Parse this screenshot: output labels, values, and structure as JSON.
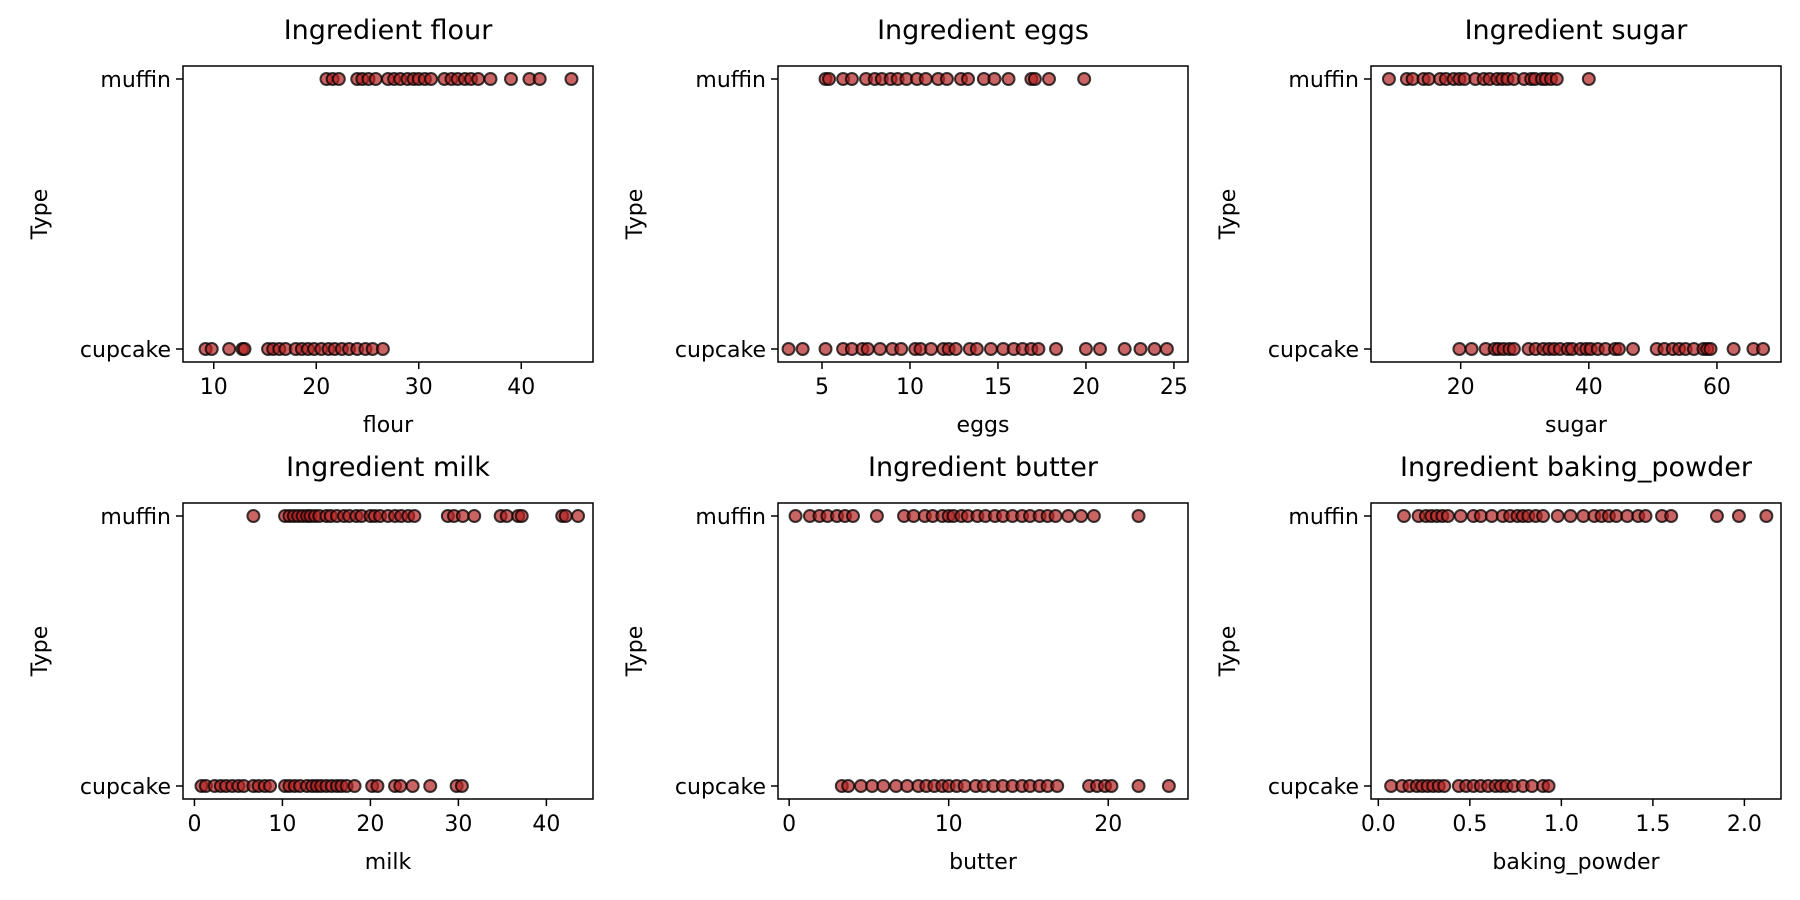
{
  "chart_data": [
    {
      "type": "scatter",
      "title": "Ingredient flour",
      "xlabel": "flour",
      "ylabel": "Type",
      "categories": [
        "cupcake",
        "muffin"
      ],
      "xlim": [
        7,
        47
      ],
      "xticks": [
        10,
        20,
        30,
        40
      ],
      "series": [
        {
          "category": "muffin",
          "x": [
            21.0,
            21.6,
            22.2,
            24.0,
            24.5,
            25.1,
            25.8,
            27.0,
            27.6,
            28.2,
            28.9,
            29.5,
            30.0,
            30.6,
            31.2,
            32.5,
            33.2,
            33.8,
            34.5,
            35.1,
            35.8,
            37.0,
            39.0,
            40.8,
            41.8,
            44.9
          ]
        },
        {
          "category": "cupcake",
          "x": [
            9.2,
            9.8,
            11.5,
            12.8,
            13.0,
            15.3,
            15.8,
            16.4,
            17.0,
            18.0,
            18.6,
            19.2,
            19.8,
            20.5,
            21.2,
            21.8,
            22.5,
            23.2,
            24.0,
            24.8,
            25.5,
            26.5
          ]
        }
      ]
    },
    {
      "type": "scatter",
      "title": "Ingredient eggs",
      "xlabel": "eggs",
      "ylabel": "Type",
      "categories": [
        "cupcake",
        "muffin"
      ],
      "xlim": [
        2.5,
        25.8
      ],
      "xticks": [
        5,
        10,
        15,
        20,
        25
      ],
      "series": [
        {
          "category": "muffin",
          "x": [
            5.2,
            5.4,
            6.2,
            6.7,
            7.5,
            8.0,
            8.4,
            8.9,
            9.3,
            9.8,
            10.4,
            10.9,
            11.6,
            12.1,
            12.9,
            13.3,
            14.2,
            14.8,
            15.6,
            16.9,
            17.1,
            17.9,
            19.9
          ]
        },
        {
          "category": "cupcake",
          "x": [
            3.1,
            3.9,
            5.2,
            6.2,
            6.7,
            7.3,
            7.6,
            8.3,
            9.0,
            9.5,
            10.3,
            10.6,
            11.2,
            11.9,
            12.2,
            12.6,
            13.4,
            13.8,
            14.6,
            15.3,
            15.9,
            16.4,
            16.9,
            17.3,
            18.3,
            20.0,
            20.8,
            22.2,
            23.1,
            23.9,
            24.6
          ]
        }
      ]
    },
    {
      "type": "scatter",
      "title": "Ingredient sugar",
      "xlabel": "sugar",
      "ylabel": "Type",
      "categories": [
        "cupcake",
        "muffin"
      ],
      "xlim": [
        6,
        70
      ],
      "xticks": [
        20,
        40,
        60
      ],
      "series": [
        {
          "category": "muffin",
          "x": [
            8.8,
            11.6,
            12.5,
            14.2,
            15.0,
            16.8,
            17.7,
            18.9,
            19.8,
            20.6,
            22.3,
            23.6,
            24.5,
            25.7,
            26.5,
            27.3,
            28.3,
            29.9,
            31.0,
            31.6,
            32.7,
            33.3,
            34.1,
            35.0,
            40.0
          ]
        },
        {
          "category": "cupcake",
          "x": [
            19.8,
            21.7,
            23.9,
            25.3,
            25.9,
            26.7,
            27.6,
            28.3,
            30.6,
            31.7,
            32.9,
            33.8,
            34.6,
            35.5,
            36.7,
            37.4,
            38.7,
            39.6,
            40.3,
            41.4,
            42.6,
            44.1,
            44.7,
            46.9,
            50.6,
            51.8,
            53.1,
            54.1,
            55.1,
            56.4,
            57.9,
            58.5,
            59.0,
            62.6,
            65.7,
            67.2
          ]
        }
      ]
    },
    {
      "type": "scatter",
      "title": "Ingredient milk",
      "xlabel": "milk",
      "ylabel": "Type",
      "categories": [
        "cupcake",
        "muffin"
      ],
      "xlim": [
        -1.3,
        45.3
      ],
      "xticks": [
        0,
        10,
        20,
        30,
        40
      ],
      "series": [
        {
          "category": "muffin",
          "x": [
            6.7,
            10.3,
            10.8,
            11.3,
            11.8,
            12.3,
            12.8,
            13.2,
            13.7,
            14.2,
            15.0,
            15.5,
            16.2,
            17.0,
            17.6,
            18.4,
            19.0,
            20.0,
            20.5,
            21.1,
            22.0,
            22.8,
            23.5,
            24.3,
            25.0,
            28.8,
            29.5,
            30.5,
            31.8,
            34.8,
            35.5,
            36.8,
            37.2,
            41.8,
            42.2,
            43.6
          ]
        },
        {
          "category": "cupcake",
          "x": [
            0.8,
            1.3,
            2.3,
            3.0,
            3.6,
            4.3,
            5.0,
            5.6,
            6.7,
            7.3,
            8.0,
            8.6,
            10.3,
            10.8,
            11.4,
            12.0,
            12.8,
            13.4,
            13.9,
            14.4,
            15.0,
            15.6,
            16.2,
            16.7,
            17.3,
            18.2,
            20.2,
            20.8,
            22.8,
            23.4,
            24.8,
            26.8,
            29.8,
            30.4
          ]
        }
      ]
    },
    {
      "type": "scatter",
      "title": "Ingredient butter",
      "xlabel": "butter",
      "ylabel": "Type",
      "categories": [
        "cupcake",
        "muffin"
      ],
      "xlim": [
        -0.7,
        25.0
      ],
      "xticks": [
        0,
        10,
        20
      ],
      "series": [
        {
          "category": "muffin",
          "x": [
            0.4,
            1.3,
            1.9,
            2.4,
            3.0,
            3.5,
            4.0,
            5.5,
            7.2,
            7.8,
            8.5,
            9.0,
            9.6,
            10.0,
            10.3,
            10.8,
            11.2,
            11.8,
            12.3,
            12.9,
            13.4,
            14.0,
            14.6,
            15.1,
            15.7,
            16.2,
            16.7,
            17.5,
            18.3,
            19.1,
            21.9
          ]
        },
        {
          "category": "cupcake",
          "x": [
            3.3,
            3.7,
            4.5,
            5.2,
            5.9,
            6.7,
            7.4,
            8.1,
            8.6,
            9.1,
            9.6,
            10.0,
            10.5,
            11.0,
            11.7,
            12.2,
            12.8,
            13.4,
            14.0,
            14.6,
            15.1,
            15.7,
            16.2,
            16.8,
            18.8,
            19.3,
            19.8,
            20.2,
            21.9,
            23.8
          ]
        }
      ]
    },
    {
      "type": "scatter",
      "title": "Ingredient baking_powder",
      "xlabel": "baking_powder",
      "ylabel": "Type",
      "categories": [
        "cupcake",
        "muffin"
      ],
      "xlim": [
        -0.04,
        2.2
      ],
      "xticks": [
        0.0,
        0.5,
        1.0,
        1.5,
        2.0
      ],
      "xtick_labels": [
        "0.0",
        "0.5",
        "1.0",
        "1.5",
        "2.0"
      ],
      "series": [
        {
          "category": "muffin",
          "x": [
            0.14,
            0.22,
            0.26,
            0.29,
            0.32,
            0.35,
            0.38,
            0.45,
            0.52,
            0.56,
            0.62,
            0.68,
            0.72,
            0.76,
            0.79,
            0.82,
            0.86,
            0.9,
            0.98,
            1.05,
            1.12,
            1.18,
            1.22,
            1.26,
            1.3,
            1.36,
            1.42,
            1.46,
            1.55,
            1.6,
            1.85,
            1.97,
            2.12
          ]
        },
        {
          "category": "cupcake",
          "x": [
            0.07,
            0.13,
            0.17,
            0.21,
            0.24,
            0.27,
            0.3,
            0.33,
            0.36,
            0.44,
            0.48,
            0.52,
            0.56,
            0.6,
            0.64,
            0.67,
            0.7,
            0.74,
            0.79,
            0.84,
            0.9,
            0.93
          ]
        }
      ]
    }
  ]
}
